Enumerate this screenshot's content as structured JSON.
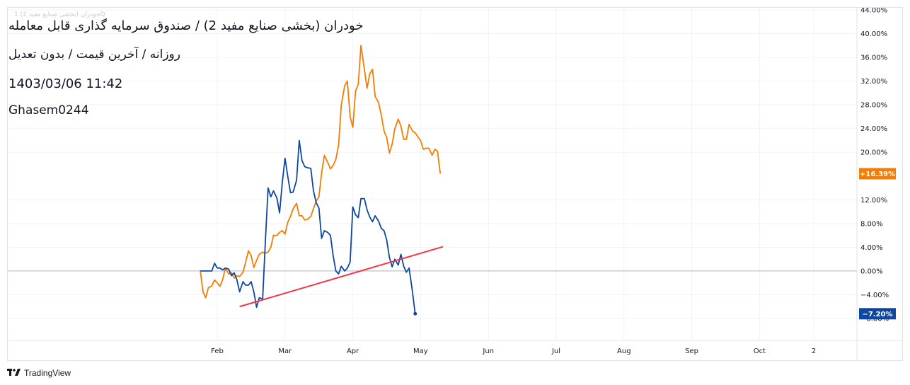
{
  "header": {
    "title": "خودران (بخشی صنایع مفید 2) / صندوق سرمایه گذاری قابل معامله",
    "subtitle": "روزانه / آخرین قیمت / بدون تعدیل",
    "datetime": "1403/03/06 11:42",
    "author": "Ghasem0244",
    "watermark": "خودران (بخشی صنایع مفید 2) 1D"
  },
  "brand": {
    "label": "TradingView"
  },
  "colors": {
    "orange": "#f57c00",
    "blue": "#0d47a1",
    "trend": "#f23645",
    "zero": "#b2b5be",
    "grid": "#f0f3fa"
  },
  "chart_data": {
    "type": "line",
    "y_unit": "%",
    "ylim": [
      -8.5,
      44
    ],
    "xlim": [
      1.0,
      12.0
    ],
    "y_ticks": [
      "44.00%",
      "40.00%",
      "36.00%",
      "32.00%",
      "28.00%",
      "24.00%",
      "20.00%",
      "12.00%",
      "8.00%",
      "4.00%",
      "0.00%",
      "−4.00%",
      "−8.00%"
    ],
    "y_tick_values": [
      44,
      40,
      36,
      32,
      28,
      24,
      20,
      12,
      8,
      4,
      0,
      -4,
      -8
    ],
    "x_ticks": [
      {
        "label": "Feb",
        "pos": 2.0
      },
      {
        "label": "Mar",
        "pos": 3.0
      },
      {
        "label": "Apr",
        "pos": 4.0
      },
      {
        "label": "May",
        "pos": 5.0
      },
      {
        "label": "Jun",
        "pos": 6.0
      },
      {
        "label": "Jul",
        "pos": 7.0
      },
      {
        "label": "Aug",
        "pos": 8.0
      },
      {
        "label": "Sep",
        "pos": 9.0
      },
      {
        "label": "Oct",
        "pos": 10.0
      },
      {
        "label": "2",
        "pos": 10.8
      }
    ],
    "series": [
      {
        "color": "#f57c00",
        "last_label": "+16.39%",
        "points": [
          [
            1.75,
            0
          ],
          [
            1.79,
            -3.5
          ],
          [
            1.83,
            -4.5
          ],
          [
            1.87,
            -2.8
          ],
          [
            1.92,
            -2.5
          ],
          [
            1.96,
            -1.5
          ],
          [
            2.0,
            -2
          ],
          [
            2.04,
            -2.6
          ],
          [
            2.08,
            -1.4
          ],
          [
            2.12,
            0.5
          ],
          [
            2.17,
            -0.5
          ],
          [
            2.21,
            -0.3
          ],
          [
            2.25,
            -1.2
          ],
          [
            2.29,
            -0.8
          ],
          [
            2.33,
            -0.9
          ],
          [
            2.38,
            -0.2
          ],
          [
            2.42,
            1.5
          ],
          [
            2.46,
            3.4
          ],
          [
            2.5,
            2.6
          ],
          [
            2.54,
            0.6
          ],
          [
            2.58,
            1.8
          ],
          [
            2.62,
            2.8
          ],
          [
            2.67,
            3.2
          ],
          [
            2.71,
            3
          ],
          [
            2.75,
            3.2
          ],
          [
            2.79,
            4
          ],
          [
            2.83,
            6
          ],
          [
            2.88,
            6
          ],
          [
            2.92,
            6.5
          ],
          [
            2.96,
            6.8
          ],
          [
            3.0,
            6.2
          ],
          [
            3.04,
            8.2
          ],
          [
            3.08,
            9.2
          ],
          [
            3.12,
            10.5
          ],
          [
            3.17,
            11.4
          ],
          [
            3.21,
            9.3
          ],
          [
            3.25,
            9.3
          ],
          [
            3.29,
            8.6
          ],
          [
            3.33,
            8.7
          ],
          [
            3.38,
            9.2
          ],
          [
            3.42,
            10.5
          ],
          [
            3.46,
            11.8
          ],
          [
            3.5,
            12.5
          ],
          [
            3.54,
            16.5
          ],
          [
            3.58,
            19.5
          ],
          [
            3.63,
            18.3
          ],
          [
            3.67,
            17.2
          ],
          [
            3.71,
            17.8
          ],
          [
            3.75,
            18.8
          ],
          [
            3.79,
            21.2
          ],
          [
            3.83,
            28
          ],
          [
            3.88,
            31.2
          ],
          [
            3.92,
            32
          ],
          [
            3.96,
            26
          ],
          [
            4.0,
            24.2
          ],
          [
            4.04,
            30.3
          ],
          [
            4.08,
            31.5
          ],
          [
            4.12,
            38
          ],
          [
            4.17,
            34
          ],
          [
            4.21,
            30.8
          ],
          [
            4.25,
            33.2
          ],
          [
            4.29,
            34
          ],
          [
            4.33,
            29.4
          ],
          [
            4.38,
            28.4
          ],
          [
            4.42,
            26.3
          ],
          [
            4.46,
            23.6
          ],
          [
            4.5,
            22.5
          ],
          [
            4.54,
            19.9
          ],
          [
            4.58,
            21.4
          ],
          [
            4.62,
            24
          ],
          [
            4.67,
            25.6
          ],
          [
            4.71,
            24.4
          ],
          [
            4.75,
            22.2
          ],
          [
            4.79,
            22.2
          ],
          [
            4.83,
            24.7
          ],
          [
            4.88,
            23.6
          ],
          [
            4.92,
            23.3
          ],
          [
            4.96,
            22.6
          ],
          [
            5.0,
            22
          ],
          [
            5.04,
            20.5
          ],
          [
            5.08,
            20.7
          ],
          [
            5.12,
            20.7
          ],
          [
            5.17,
            19.5
          ],
          [
            5.21,
            20.5
          ],
          [
            5.25,
            20.2
          ],
          [
            5.29,
            16.4
          ]
        ]
      },
      {
        "color": "#0d47a1",
        "last_label": "−7.20%",
        "points": [
          [
            1.75,
            0
          ],
          [
            1.79,
            0
          ],
          [
            1.83,
            0
          ],
          [
            1.87,
            0
          ],
          [
            1.92,
            0
          ],
          [
            1.96,
            1.3
          ],
          [
            2.0,
            0.5
          ],
          [
            2.04,
            0.5
          ],
          [
            2.08,
            0.2
          ],
          [
            2.12,
            0.5
          ],
          [
            2.17,
            0.3
          ],
          [
            2.21,
            -0.8
          ],
          [
            2.25,
            -0.3
          ],
          [
            2.29,
            -1.5
          ],
          [
            2.33,
            -3.5
          ],
          [
            2.38,
            -1.8
          ],
          [
            2.42,
            -2.4
          ],
          [
            2.46,
            -2.4
          ],
          [
            2.5,
            -1.8
          ],
          [
            2.54,
            -3.5
          ],
          [
            2.58,
            -6.1
          ],
          [
            2.62,
            -4.5
          ],
          [
            2.67,
            -4.7
          ],
          [
            2.71,
            5
          ],
          [
            2.75,
            14
          ],
          [
            2.79,
            12.5
          ],
          [
            2.83,
            13.5
          ],
          [
            2.88,
            12.3
          ],
          [
            2.92,
            9.8
          ],
          [
            2.96,
            15
          ],
          [
            3.0,
            19
          ],
          [
            3.04,
            16
          ],
          [
            3.08,
            13.2
          ],
          [
            3.12,
            13.3
          ],
          [
            3.17,
            15.3
          ],
          [
            3.21,
            22
          ],
          [
            3.25,
            18.6
          ],
          [
            3.29,
            17.6
          ],
          [
            3.33,
            17.4
          ],
          [
            3.38,
            17.3
          ],
          [
            3.42,
            13.5
          ],
          [
            3.46,
            11.5
          ],
          [
            3.5,
            10.6
          ],
          [
            3.54,
            5.5
          ],
          [
            3.58,
            6.8
          ],
          [
            3.63,
            6.5
          ],
          [
            3.67,
            6
          ],
          [
            3.71,
            2.6
          ],
          [
            3.75,
            0
          ],
          [
            3.79,
            -0.5
          ],
          [
            3.83,
            0.8
          ],
          [
            3.88,
            0
          ],
          [
            3.92,
            0.5
          ],
          [
            3.96,
            1.5
          ],
          [
            4.0,
            10.8
          ],
          [
            4.04,
            9.5
          ],
          [
            4.08,
            9
          ],
          [
            4.12,
            12.2
          ],
          [
            4.17,
            12.2
          ],
          [
            4.21,
            10.3
          ],
          [
            4.25,
            9.1
          ],
          [
            4.29,
            8.3
          ],
          [
            4.33,
            9.3
          ],
          [
            4.38,
            8.4
          ],
          [
            4.42,
            7.2
          ],
          [
            4.46,
            6.8
          ],
          [
            4.5,
            5.2
          ],
          [
            4.54,
            2.3
          ],
          [
            4.58,
            0.7
          ],
          [
            4.62,
            2
          ],
          [
            4.67,
            1
          ],
          [
            4.71,
            2.8
          ],
          [
            4.75,
            0.8
          ],
          [
            4.79,
            -0.2
          ],
          [
            4.83,
            0.5
          ],
          [
            4.88,
            -3.5
          ],
          [
            4.92,
            -7.2
          ]
        ]
      }
    ],
    "trendline": {
      "color": "#f23645",
      "from": [
        2.33,
        -6.0
      ],
      "to": [
        5.33,
        4.1
      ]
    }
  }
}
